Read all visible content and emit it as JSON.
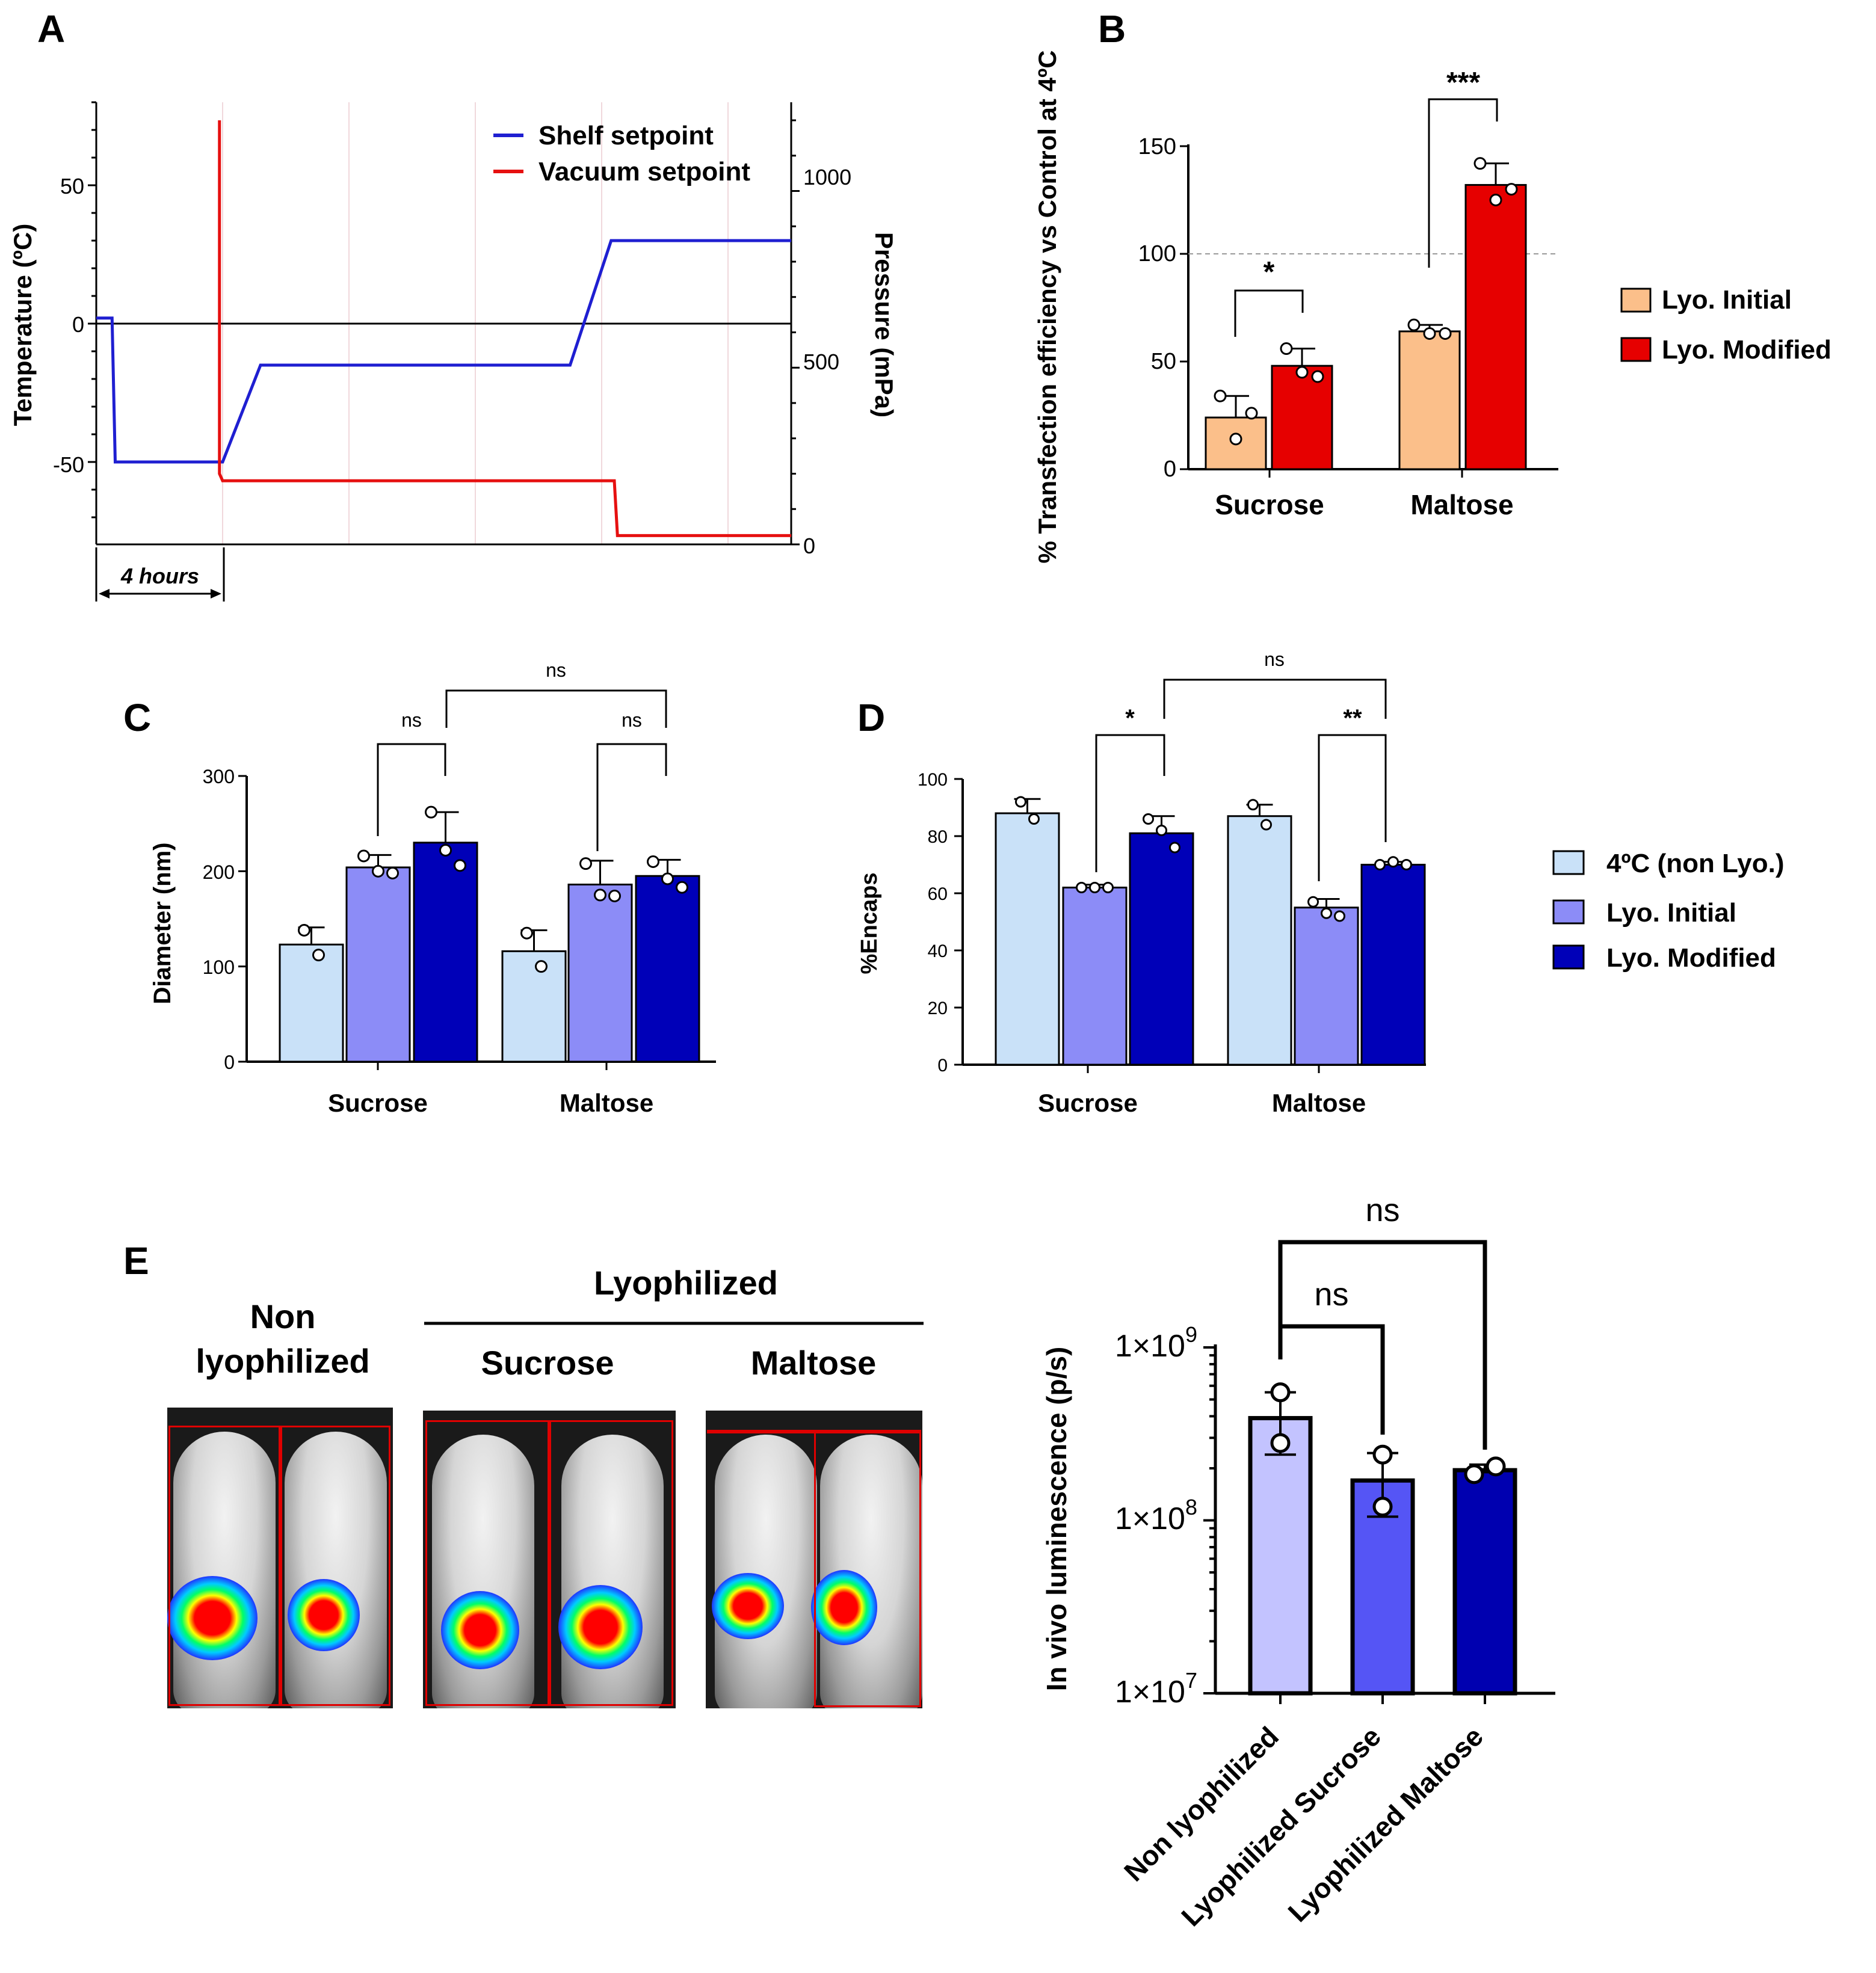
{
  "colors": {
    "shelf": "#1f1fd1",
    "vacuum": "#e61010",
    "orange": "#fbbf8a",
    "red": "#e60000",
    "light_blue": "#c9e1f8",
    "mid_blue": "#8c8cf7",
    "dark_blue": "#0000b8",
    "e_light": "#c3c3ff",
    "e_mid": "#5555f5",
    "e_dark": "#0000b0"
  },
  "panel_labels": {
    "a": "A",
    "b": "B",
    "c": "C",
    "d": "D",
    "e": "E"
  },
  "chart_data": [
    {
      "panel": "A",
      "type": "line",
      "ylabel_left": "Temperature (ºC)",
      "ylabel_right": "Pressure (mPa)",
      "yticks_left": [
        "50",
        "0",
        "-50"
      ],
      "yticks_right": [
        "1000",
        "500",
        "0"
      ],
      "ylim_left": [
        -80,
        80
      ],
      "ylim_right": [
        0,
        1200
      ],
      "xlim_hours": [
        0,
        22
      ],
      "scale_bar": "4 hours",
      "legend": [
        "Shelf setpoint",
        "Vacuum setpoint"
      ],
      "series": [
        {
          "name": "Shelf setpoint",
          "x_hours": [
            0,
            0.5,
            0.6,
            4,
            5.2,
            15,
            16.3,
            22
          ],
          "y_temp_c": [
            2,
            2,
            -50,
            -50,
            -15,
            -15,
            30,
            30
          ]
        },
        {
          "name": "Vacuum setpoint",
          "x_hours": [
            3.9,
            3.9,
            4,
            16.4,
            16.5,
            22
          ],
          "y_pressure_mpa": [
            1200,
            200,
            180,
            180,
            25,
            25
          ]
        }
      ]
    },
    {
      "panel": "B",
      "type": "bar",
      "ylabel": "% Transfection efficiency vs Control at 4ºC",
      "categories": [
        "Sucrose",
        "Maltose"
      ],
      "yticks": [
        "0",
        "50",
        "100",
        "150"
      ],
      "ylim": [
        0,
        150
      ],
      "reference_line": 100,
      "series": [
        {
          "name": "Lyo. Initial",
          "values": [
            24,
            64
          ],
          "errors": [
            10,
            3
          ],
          "points": [
            [
              34,
              14,
              26
            ],
            [
              67,
              63,
              63
            ]
          ]
        },
        {
          "name": "Lyo. Modified",
          "values": [
            48,
            132
          ],
          "errors": [
            8,
            10
          ],
          "points": [
            [
              56,
              45,
              43
            ],
            [
              142,
              125,
              130
            ]
          ]
        }
      ],
      "significance": [
        {
          "category": "Sucrose",
          "label": "*"
        },
        {
          "category": "Maltose",
          "label": "***"
        }
      ]
    },
    {
      "panel": "C",
      "type": "bar",
      "ylabel": "Diameter (nm)",
      "categories": [
        "Sucrose",
        "Maltose"
      ],
      "yticks": [
        "0",
        "100",
        "200",
        "300"
      ],
      "ylim": [
        0,
        300
      ],
      "series": [
        {
          "name": "4ºC (non Lyo.)",
          "values": [
            123,
            116
          ],
          "errors": [
            18,
            22
          ],
          "points": [
            [
              138,
              112
            ],
            [
              135,
              100
            ]
          ]
        },
        {
          "name": "Lyo. Initial",
          "values": [
            204,
            186
          ],
          "errors": [
            13,
            25
          ],
          "points": [
            [
              216,
              200,
              198
            ],
            [
              208,
              175,
              174
            ]
          ]
        },
        {
          "name": "Lyo. Modified",
          "values": [
            230,
            195
          ],
          "errors": [
            32,
            17
          ],
          "points": [
            [
              262,
              222,
              206
            ],
            [
              210,
              192,
              183
            ]
          ]
        }
      ],
      "significance": [
        {
          "between": "Sucrose Lyo. Initial vs Lyo. Modified",
          "label": "ns"
        },
        {
          "between": "Maltose Lyo. Initial vs Lyo. Modified",
          "label": "ns"
        },
        {
          "between": "Sucrose vs Maltose Lyo. Modified",
          "label": "ns"
        }
      ]
    },
    {
      "panel": "D",
      "type": "bar",
      "ylabel": "%Encaps",
      "categories": [
        "Sucrose",
        "Maltose"
      ],
      "yticks": [
        "0",
        "20",
        "40",
        "60",
        "80",
        "100"
      ],
      "ylim": [
        0,
        100
      ],
      "series": [
        {
          "name": "4ºC (non Lyo.)",
          "values": [
            88,
            87
          ],
          "errors": [
            5,
            4
          ],
          "points": [
            [
              92,
              86
            ],
            [
              91,
              84
            ]
          ]
        },
        {
          "name": "Lyo. Initial",
          "values": [
            62,
            55
          ],
          "errors": [
            1,
            3
          ],
          "points": [
            [
              62,
              62,
              62
            ],
            [
              57,
              53,
              52
            ]
          ]
        },
        {
          "name": "Lyo. Modified",
          "values": [
            81,
            70
          ],
          "errors": [
            6,
            1
          ],
          "points": [
            [
              86,
              82,
              76
            ],
            [
              70,
              71,
              70
            ]
          ]
        }
      ],
      "significance": [
        {
          "between": "Sucrose Lyo. Initial vs Lyo. Modified",
          "label": "*"
        },
        {
          "between": "Maltose Lyo. Initial vs Lyo. Modified",
          "label": "**"
        },
        {
          "between": "Sucrose vs Maltose Lyo. Modified",
          "label": "ns"
        }
      ]
    },
    {
      "panel": "E",
      "type": "bar",
      "yscale": "log",
      "ylabel": "In vivo luminescence (p/s)",
      "categories": [
        "Non lyophilized",
        "Lyophilized Sucrose",
        "Lyophilized Maltose"
      ],
      "ytick_base": "1×10",
      "ytick_exponents": [
        "9",
        "8",
        "7"
      ],
      "ylim": [
        10000000,
        1000000000
      ],
      "values": [
        390000000,
        170000000,
        195000000
      ],
      "error_low": [
        240000000,
        105000000,
        190000000
      ],
      "error_high": [
        550000000,
        245000000,
        210000000
      ],
      "points": [
        [
          550000000,
          280000000
        ],
        [
          240000000,
          120000000
        ],
        [
          185000000,
          205000000
        ]
      ],
      "significance": [
        {
          "between": "Non lyophilized vs Lyophilized Sucrose",
          "label": "ns"
        },
        {
          "between": "Non lyophilized vs Lyophilized Maltose",
          "label": "ns"
        }
      ]
    }
  ],
  "panel_e_images": {
    "header_lyophilized": "Lyophilized",
    "non_line1": "Non",
    "non_line2": "lyophilized",
    "sucrose": "Sucrose",
    "maltose": "Maltose"
  }
}
